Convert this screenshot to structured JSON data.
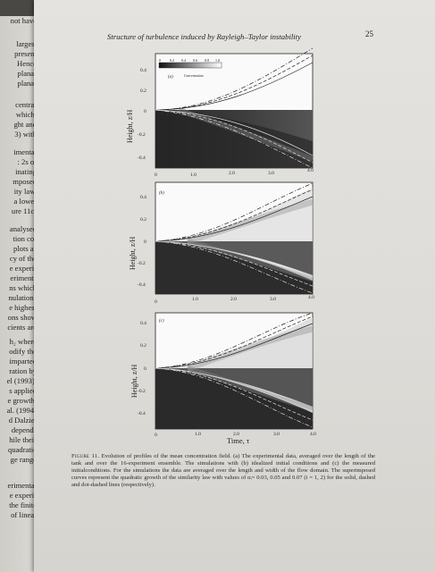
{
  "header": {
    "title": "Structure of turbulence induced by Rayleigh–Taylor instability",
    "page_number": "25"
  },
  "left_page_fragments": [
    "largest",
    "present",
    "Hence",
    "planar",
    "planar",
    "centra-",
    "which,",
    "ght and",
    "3) with",
    "imental",
    ": 2s of",
    "inating",
    "mposed",
    "ity law,",
    "a lower",
    "ure 11c)",
    "analysed",
    "tion co-",
    "plots as",
    "cy of the",
    "e experi-",
    "eriments",
    "ns which",
    "nulations",
    "e highest",
    "ons show",
    "cients are",
    "h₂ where",
    "odify the",
    "imparted",
    "ration by",
    "el (1993),",
    "s applied",
    "e growth.",
    "al. (1994)",
    "d Dalziel",
    "depends",
    "hile their",
    "quadratic",
    "ge range",
    "erimental",
    "e experi-",
    "the finite",
    "of linear",
    "not have"
  ],
  "figure": {
    "colorbar_label": "Concentration",
    "colorbar_ticks": [
      "0",
      "0.2",
      "0.4",
      "0.6",
      "0.8",
      "1.0"
    ],
    "y_axis_label": "Height, z/H",
    "x_axis_label": "Time, τ",
    "x_ticks": [
      "0",
      "1.0",
      "2.0",
      "3.0",
      "4.0"
    ],
    "y_ticks": [
      "0.4",
      "0.2",
      "0",
      "-0.2",
      "-0.4"
    ],
    "panels": [
      {
        "label": "(a)"
      },
      {
        "label": "(b)"
      },
      {
        "label": "(c)"
      }
    ]
  },
  "caption": {
    "label": "Figure 11.",
    "text": " Evolution of profiles of the mean concentration field. (a) The experimental data, averaged over the length of the tank and over the 16-experiment ensemble. The simulations with (b) idealized initial conditions and (c) the measured initialconditions. For the simulations the data are averaged over the length and width of the flow domain. The superimposed curves represent the quadratic growth of the similarity law with values of αᵢ= 0.03, 0.05 and 0.07 (i = 1, 2) for the solid, dashed and dot-dashed lines (respectively)."
  }
}
